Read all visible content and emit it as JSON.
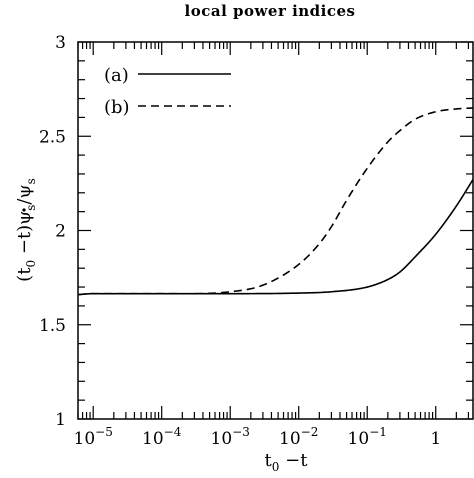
{
  "chart_data": {
    "type": "line",
    "title": "local power indices",
    "xlabel_main": "t",
    "xlabel_sub": "0",
    "xlabel_rest": " −t",
    "ylabel_open": "(t",
    "ylabel_sub": "0",
    "ylabel_mid": " −t)",
    "ylabel_psi": "ψ",
    "ylabel_sub2": "s",
    "ylabel_slash": "/",
    "ylabel_sub3": "s",
    "xscale": "log",
    "xlim": [
      6e-06,
      3.5
    ],
    "ylim": [
      1,
      3
    ],
    "x_ticks": [
      {
        "value": 1e-05,
        "base": "10",
        "exp": "−5"
      },
      {
        "value": 0.0001,
        "base": "10",
        "exp": "−4"
      },
      {
        "value": 0.001,
        "base": "10",
        "exp": "−3"
      },
      {
        "value": 0.01,
        "base": "10",
        "exp": "−2"
      },
      {
        "value": 0.1,
        "base": "10",
        "exp": "−1"
      },
      {
        "value": 1,
        "base": "1",
        "exp": ""
      }
    ],
    "y_ticks": [
      {
        "value": 1,
        "label": "1"
      },
      {
        "value": 1.5,
        "label": "1.5"
      },
      {
        "value": 2,
        "label": "2"
      },
      {
        "value": 2.5,
        "label": "2.5"
      },
      {
        "value": 3,
        "label": "3"
      }
    ],
    "grid": false,
    "legend_position": "top-left",
    "series": [
      {
        "name": "(a)",
        "style": "solid",
        "x": [
          6e-06,
          1e-05,
          0.0001,
          0.001,
          0.01,
          0.03,
          0.1,
          0.2,
          0.3,
          0.5,
          1,
          2,
          3.5
        ],
        "y": [
          1.66,
          1.665,
          1.665,
          1.665,
          1.668,
          1.675,
          1.7,
          1.74,
          1.78,
          1.86,
          1.98,
          2.13,
          2.27
        ]
      },
      {
        "name": "(b)",
        "style": "dashed",
        "x": [
          6e-06,
          1e-05,
          0.0001,
          0.001,
          0.003,
          0.01,
          0.02,
          0.03,
          0.05,
          0.1,
          0.2,
          0.3,
          0.5,
          1,
          2,
          3.5
        ],
        "y": [
          1.66,
          1.665,
          1.665,
          1.675,
          1.71,
          1.82,
          1.93,
          2.02,
          2.16,
          2.33,
          2.47,
          2.53,
          2.59,
          2.63,
          2.645,
          2.65
        ]
      }
    ]
  }
}
